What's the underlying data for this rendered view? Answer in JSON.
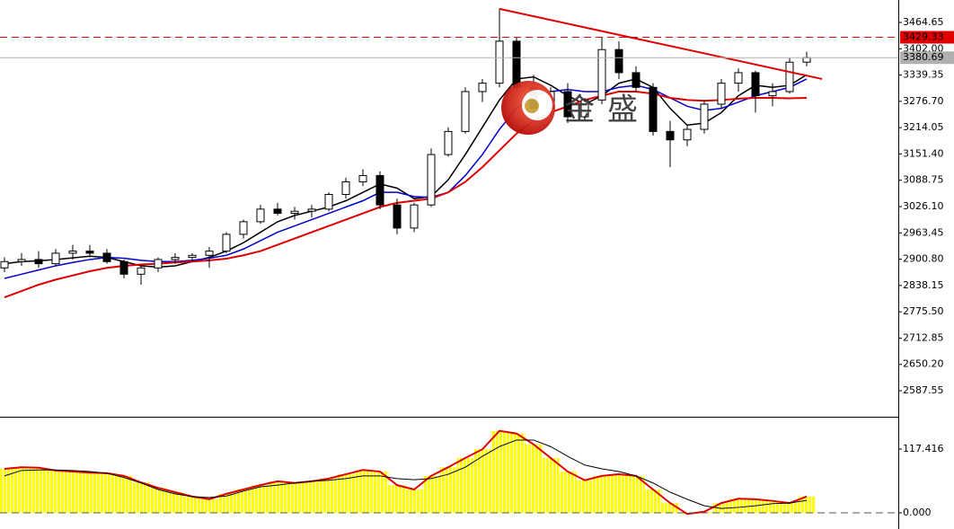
{
  "chart_data": [
    {
      "type": "candlestick",
      "watermark": "金盛",
      "open": [
        2880,
        2895,
        2900,
        2890,
        2915,
        2920,
        2915,
        2895,
        2865,
        2880,
        2900,
        2905,
        2910,
        2920,
        2960,
        2990,
        3020,
        3010,
        3015,
        3020,
        3055,
        3085,
        3100,
        3030,
        2975,
        3030,
        3150,
        3205,
        3300,
        3320,
        3420,
        3310,
        3260,
        3300,
        3240,
        3280,
        3400,
        3345,
        3310,
        3205,
        3185,
        3210,
        3270,
        3320,
        3345,
        3290,
        3300,
        3370
      ],
      "high": [
        2905,
        2915,
        2920,
        2925,
        2935,
        2935,
        2925,
        2900,
        2885,
        2905,
        2915,
        2915,
        2930,
        2965,
        2995,
        3030,
        3035,
        3025,
        3030,
        3060,
        3095,
        3115,
        3110,
        3045,
        3035,
        3165,
        3215,
        3310,
        3330,
        3497,
        3430,
        3340,
        3310,
        3320,
        3285,
        3430,
        3420,
        3360,
        3320,
        3230,
        3220,
        3280,
        3330,
        3355,
        3350,
        3320,
        3380,
        3395
      ],
      "low": [
        2870,
        2885,
        2880,
        2885,
        2900,
        2905,
        2890,
        2855,
        2840,
        2870,
        2890,
        2895,
        2880,
        2915,
        2950,
        2985,
        3005,
        2995,
        3000,
        3015,
        3045,
        3075,
        3020,
        2960,
        2965,
        3025,
        3145,
        3200,
        3275,
        3310,
        3300,
        3235,
        3240,
        3225,
        3230,
        3270,
        3330,
        3300,
        3195,
        3120,
        3170,
        3200,
        3260,
        3300,
        3250,
        3265,
        3295,
        3360
      ],
      "close": [
        2895,
        2900,
        2890,
        2915,
        2920,
        2915,
        2895,
        2865,
        2880,
        2900,
        2905,
        2910,
        2920,
        2960,
        2990,
        3020,
        3010,
        3015,
        3020,
        3055,
        3085,
        3100,
        3030,
        2975,
        3030,
        3150,
        3205,
        3300,
        3320,
        3420,
        3310,
        3260,
        3300,
        3240,
        3280,
        3400,
        3345,
        3310,
        3205,
        3185,
        3210,
        3270,
        3320,
        3345,
        3290,
        3300,
        3370,
        3380.69
      ],
      "series": [
        {
          "color": "#000000",
          "values": [
            2890,
            2895,
            2897,
            2900,
            2904,
            2908,
            2905,
            2895,
            2885,
            2882,
            2885,
            2895,
            2905,
            2920,
            2940,
            2965,
            2990,
            3005,
            3015,
            3025,
            3040,
            3060,
            3080,
            3070,
            3045,
            3050,
            3090,
            3150,
            3215,
            3280,
            3330,
            3335,
            3315,
            3290,
            3270,
            3290,
            3320,
            3330,
            3310,
            3260,
            3220,
            3225,
            3250,
            3290,
            3315,
            3310,
            3315,
            3340
          ]
        },
        {
          "color": "#0000cc",
          "values": [
            2855,
            2865,
            2875,
            2885,
            2893,
            2900,
            2905,
            2903,
            2898,
            2895,
            2895,
            2898,
            2903,
            2910,
            2925,
            2945,
            2965,
            2980,
            2995,
            3010,
            3025,
            3040,
            3060,
            3060,
            3050,
            3048,
            3060,
            3100,
            3150,
            3210,
            3260,
            3290,
            3300,
            3305,
            3300,
            3300,
            3310,
            3315,
            3305,
            3285,
            3265,
            3255,
            3260,
            3275,
            3290,
            3300,
            3310,
            3330
          ]
        },
        {
          "color": "#dd0000",
          "values": [
            2810,
            2825,
            2840,
            2852,
            2862,
            2872,
            2880,
            2885,
            2888,
            2890,
            2893,
            2895,
            2898,
            2902,
            2910,
            2920,
            2935,
            2950,
            2965,
            2980,
            2995,
            3010,
            3025,
            3035,
            3040,
            3045,
            3060,
            3085,
            3120,
            3160,
            3200,
            3230,
            3250,
            3265,
            3280,
            3290,
            3300,
            3300,
            3295,
            3285,
            3280,
            3278,
            3280,
            3283,
            3285,
            3285,
            3284,
            3285
          ]
        }
      ],
      "trendline": {
        "x": [
          29,
          47.9
        ],
        "values": [
          3497,
          3330
        ],
        "color": "#e00000"
      },
      "levels": [
        {
          "value": 3429.33,
          "color": "#e00000",
          "dashed": true
        },
        {
          "value": 3380.69,
          "color": "#b0b0b0",
          "dashed": false
        }
      ],
      "ylim": [
        2527.65,
        3518.13
      ],
      "yticks": [
        3464.65,
        {
          "value": 3402.0,
          "label": "3402.00"
        },
        3339.35,
        {
          "value": 3276.7,
          "label": "3276.70"
        },
        3214.05,
        {
          "value": 3151.4,
          "label": "3151.40"
        },
        3088.75,
        {
          "value": 3026.1,
          "label": "3026.10"
        },
        2963.45,
        {
          "value": 2900.8,
          "label": "2900.80"
        },
        2838.15,
        {
          "value": 2775.5,
          "label": "2775.50"
        },
        2712.85,
        {
          "value": 2650.2,
          "label": "2650.20"
        },
        2587.55
      ]
    },
    {
      "type": "histogram",
      "color": "#ffff00",
      "line_color": "#dd0000",
      "values": [
        81,
        84,
        83,
        78,
        76,
        74,
        73,
        68,
        56,
        46,
        38,
        30,
        25,
        35,
        43,
        51,
        58,
        55,
        58,
        63,
        71,
        79,
        76,
        51,
        43,
        68,
        84,
        101,
        117,
        151,
        146,
        126,
        101,
        76,
        60,
        68,
        71,
        68,
        43,
        18,
        -2,
        2,
        18,
        26,
        25,
        22,
        18,
        30
      ],
      "series": [
        {
          "color": "#000000",
          "values": [
            68,
            78,
            79,
            79,
            78,
            76,
            73,
            65,
            55,
            43,
            35,
            30,
            28,
            31,
            40,
            48,
            51,
            55,
            58,
            60,
            63,
            68,
            68,
            63,
            61,
            63,
            71,
            84,
            104,
            122,
            134,
            134,
            122,
            104,
            88,
            81,
            76,
            68,
            55,
            38,
            25,
            13,
            8,
            10,
            13,
            17,
            18,
            23
          ]
        }
      ],
      "ylim": [
        -29.8,
        175.3
      ],
      "yticks": [
        117.416,
        {
          "value": 0,
          "label": "0.000"
        }
      ]
    }
  ]
}
